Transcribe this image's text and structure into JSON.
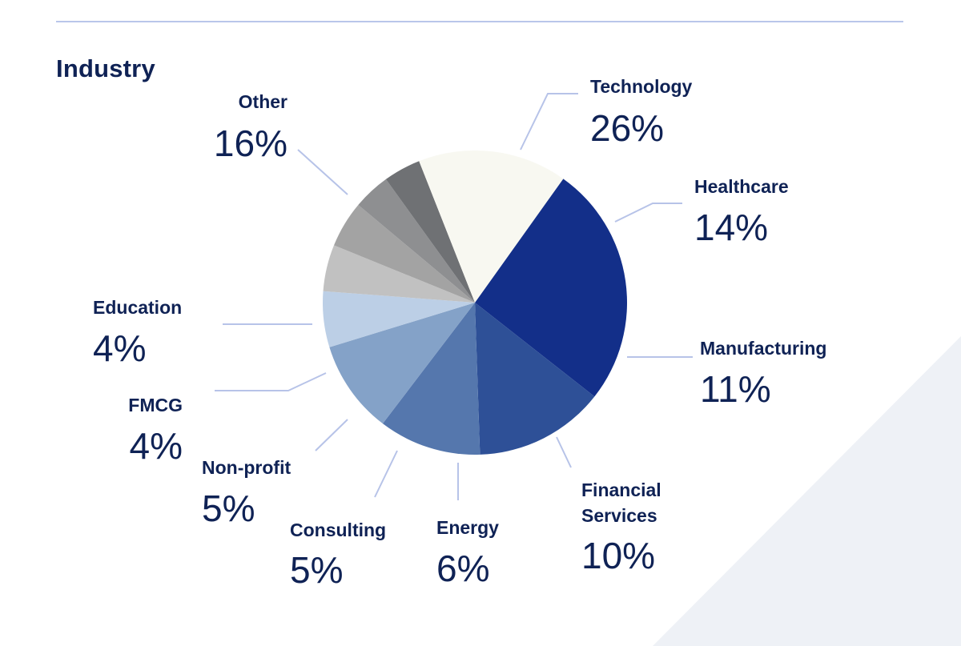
{
  "chart_data": {
    "type": "pie",
    "title": "Industry",
    "categories": [
      "Technology",
      "Healthcare",
      "Manufacturing",
      "Financial Services",
      "Energy",
      "Consulting",
      "Non-profit",
      "FMCG",
      "Education",
      "Other"
    ],
    "values": [
      26,
      14,
      11,
      10,
      6,
      5,
      5,
      4,
      4,
      16
    ],
    "labels": [
      "26%",
      "14%",
      "11%",
      "10%",
      "6%",
      "5%",
      "5%",
      "4%",
      "4%",
      "16%"
    ],
    "colors": [
      "#132f89",
      "#2e5097",
      "#5577ad",
      "#84a2c8",
      "#bccfe6",
      "#c1c1c1",
      "#a3a3a3",
      "#8e8f91",
      "#6f7174",
      "#f8f8f1"
    ],
    "legend": "none"
  }
}
